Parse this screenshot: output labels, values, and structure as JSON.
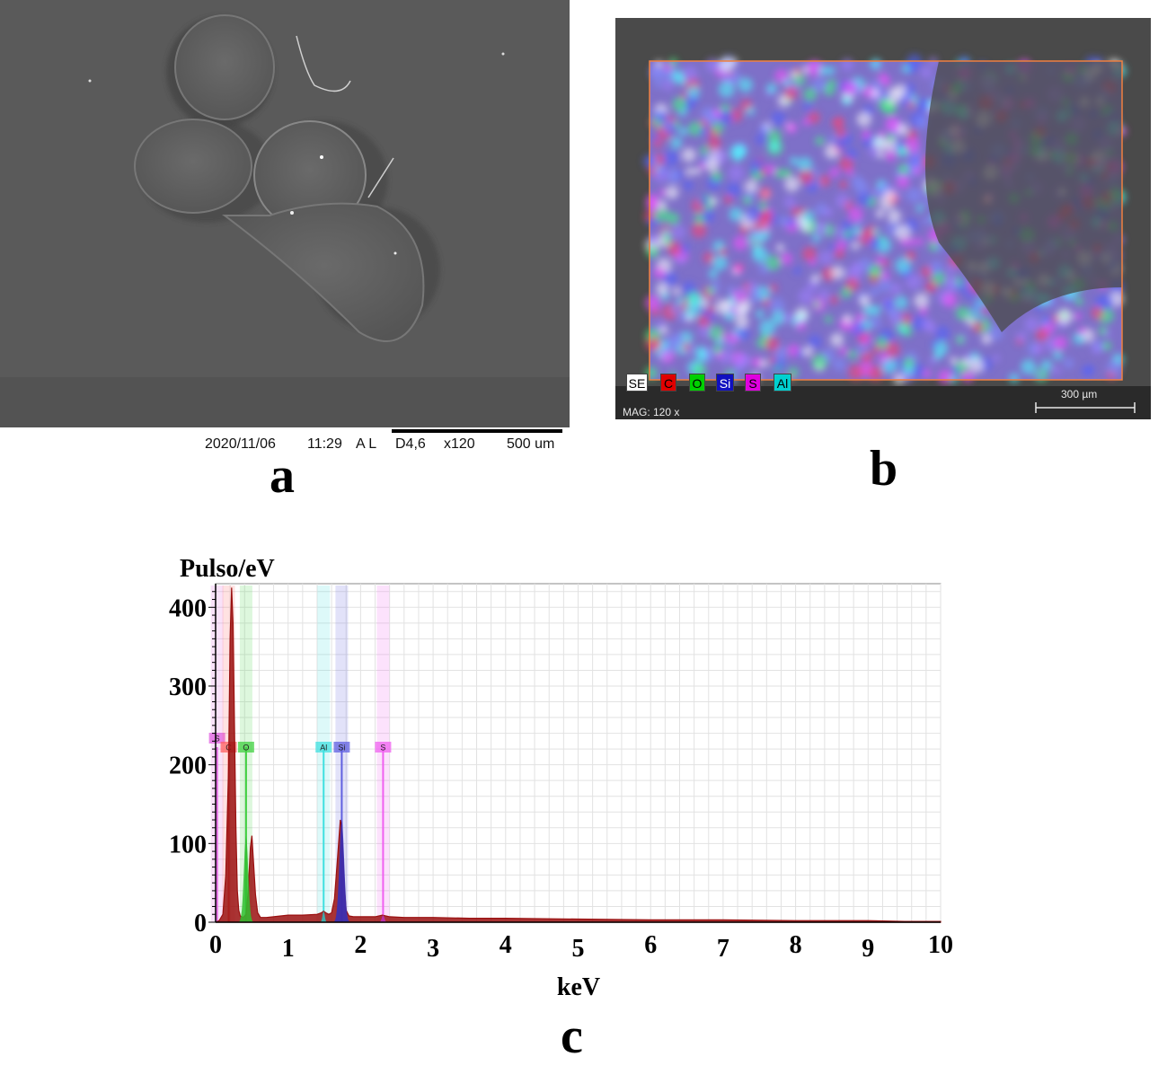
{
  "panel_a": {
    "letter": "a",
    "footer": {
      "date": "2020/11/06",
      "time": "11:29",
      "mode": "A L",
      "detector": "D4,6",
      "magnification": "x120",
      "scale": "500 um"
    }
  },
  "panel_b": {
    "letter": "b",
    "legend": [
      {
        "label": "SE",
        "color": "#ffffff",
        "text_color": "#000000"
      },
      {
        "label": "C",
        "color": "#e00000",
        "text_color": "#000000"
      },
      {
        "label": "O",
        "color": "#00d000",
        "text_color": "#000000"
      },
      {
        "label": "Si",
        "color": "#1010c0",
        "text_color": "#ffffff"
      },
      {
        "label": "S",
        "color": "#e000e0",
        "text_color": "#000000"
      },
      {
        "label": "Al",
        "color": "#00d0d0",
        "text_color": "#000000"
      }
    ],
    "magnification": "MAG: 120 x",
    "scale": "300 µm",
    "roi_color": "#f08040"
  },
  "panel_c": {
    "letter": "c"
  },
  "chart_data": {
    "type": "line",
    "xlabel": "keV",
    "ylabel": "Pulso/eV",
    "xlim": [
      0,
      10
    ],
    "ylim": [
      0,
      430
    ],
    "xticks": [
      0,
      1,
      2,
      3,
      4,
      5,
      6,
      7,
      8,
      9,
      10
    ],
    "yticks": [
      0,
      100,
      200,
      300,
      400
    ],
    "grid": true,
    "line_color": "#9a1010",
    "x": [
      0.0,
      0.05,
      0.1,
      0.14,
      0.18,
      0.2,
      0.22,
      0.24,
      0.26,
      0.28,
      0.3,
      0.32,
      0.34,
      0.38,
      0.42,
      0.45,
      0.48,
      0.5,
      0.52,
      0.55,
      0.58,
      0.62,
      0.7,
      0.8,
      0.9,
      1.0,
      1.2,
      1.4,
      1.46,
      1.49,
      1.52,
      1.56,
      1.6,
      1.64,
      1.68,
      1.72,
      1.74,
      1.76,
      1.78,
      1.8,
      1.84,
      1.9,
      2.0,
      2.2,
      2.3,
      2.4,
      2.6,
      3.0,
      3.5,
      4.0,
      5.0,
      6.0,
      7.0,
      8.0,
      9.0,
      9.5,
      10.0
    ],
    "values": [
      0,
      2,
      10,
      60,
      200,
      360,
      425,
      380,
      250,
      120,
      40,
      15,
      8,
      6,
      10,
      40,
      95,
      110,
      80,
      35,
      12,
      6,
      6,
      7,
      8,
      9,
      9,
      10,
      12,
      14,
      12,
      10,
      12,
      30,
      80,
      130,
      120,
      80,
      40,
      15,
      8,
      7,
      7,
      7,
      9,
      7,
      6,
      6,
      5,
      5,
      4,
      3,
      3,
      2,
      2,
      1,
      1
    ],
    "peaks": [
      {
        "label": "S",
        "energy": 0.02,
        "color": "#e060e0"
      },
      {
        "label": "C",
        "energy": 0.18,
        "color": "#ff6060"
      },
      {
        "label": "O",
        "energy": 0.42,
        "color": "#40d040"
      },
      {
        "label": "Al",
        "energy": 1.49,
        "color": "#40e0e0"
      },
      {
        "label": "Si",
        "energy": 1.74,
        "color": "#6060e0"
      },
      {
        "label": "S",
        "energy": 2.31,
        "color": "#f060f0"
      }
    ]
  }
}
